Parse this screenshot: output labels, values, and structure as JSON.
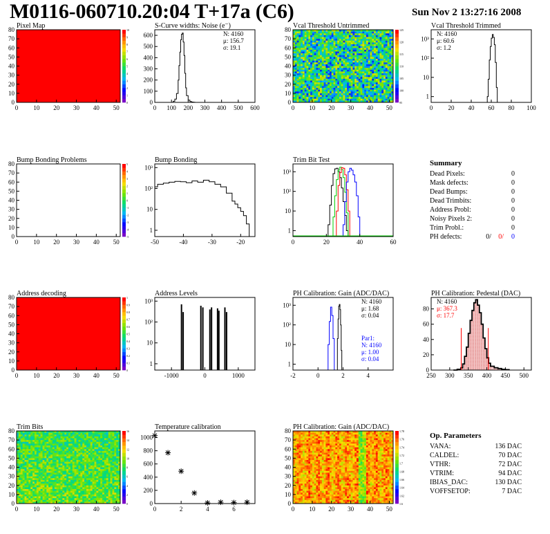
{
  "header": {
    "title": "M0116-060710.20:04 T+17a (C6)",
    "timestamp": "Sun Nov  2 13:27:16 2008"
  },
  "colors": {
    "frame": "#000000",
    "green_trace": "#00cc00",
    "red_trace": "#ff0000",
    "blue_trace": "#0000ff",
    "pedestal_fill": "#cc3333"
  },
  "chart_data": [
    {
      "id": "pixel-map",
      "type": "heatmap",
      "title": "Pixel Map",
      "xticks": [
        "0",
        "10",
        "20",
        "30",
        "40",
        "50"
      ],
      "yticks": [
        "0",
        "10",
        "20",
        "30",
        "40",
        "50",
        "60",
        "70",
        "80"
      ],
      "xlim": [
        0,
        52
      ],
      "ylim": [
        0,
        80
      ],
      "fill": "uniform",
      "uniform_value": 10,
      "zticks": [
        "0",
        "1",
        "2",
        "3",
        "4",
        "5",
        "6",
        "7",
        "8",
        "9",
        "10"
      ]
    },
    {
      "id": "scurve-noise",
      "type": "line",
      "title": "S-Curve widths: Noise (e⁻)",
      "xticks": [
        "0",
        "100",
        "200",
        "300",
        "400",
        "500",
        "600"
      ],
      "yticks": [
        "0",
        "100",
        "200",
        "300",
        "400",
        "500",
        "600"
      ],
      "xlim": [
        0,
        600
      ],
      "ylim": [
        0,
        650
      ],
      "log": false,
      "x": [
        100,
        110,
        120,
        130,
        140,
        145,
        150,
        155,
        160,
        165,
        170,
        175,
        180,
        185,
        190,
        200,
        210,
        220,
        230,
        240,
        250
      ],
      "y": [
        0,
        10,
        30,
        80,
        200,
        330,
        450,
        560,
        610,
        620,
        540,
        420,
        260,
        130,
        60,
        20,
        8,
        3,
        1,
        0,
        0
      ],
      "stats": [
        "N: 4160",
        "μ: 156.7",
        "σ: 19.1"
      ]
    },
    {
      "id": "vcal-untrimmed",
      "type": "heatmap",
      "title": "Vcal Threshold Untrimmed",
      "xticks": [
        "0",
        "10",
        "20",
        "30",
        "40",
        "50"
      ],
      "yticks": [
        "0",
        "10",
        "20",
        "30",
        "40",
        "50",
        "60",
        "70",
        "80"
      ],
      "xlim": [
        0,
        52
      ],
      "ylim": [
        0,
        80
      ],
      "fill": "noise",
      "zticks": [
        "95",
        "100",
        "105",
        "110",
        "115",
        "120",
        "125"
      ]
    },
    {
      "id": "vcal-trimmed",
      "type": "line",
      "title": "Vcal Threshold Trimmed",
      "xticks": [
        "0",
        "20",
        "40",
        "60",
        "80",
        "100"
      ],
      "yticks": [
        "1",
        "10",
        "10²",
        "10³"
      ],
      "xlim": [
        0,
        100
      ],
      "ylim": [
        0.5,
        3000
      ],
      "log": true,
      "x": [
        54,
        56,
        57,
        58,
        59,
        60,
        61,
        62,
        63,
        64,
        65,
        66
      ],
      "y": [
        0.5,
        1,
        8,
        80,
        400,
        1100,
        1700,
        1200,
        500,
        60,
        3,
        0.5
      ],
      "stats": [
        "N: 4160",
        "μ: 60.6",
        "σ:  1.2"
      ]
    },
    {
      "id": "bump-problems",
      "type": "heatmap",
      "title": "Bump Bonding Problems",
      "xticks": [
        "0",
        "10",
        "20",
        "30",
        "40",
        "50"
      ],
      "yticks": [
        "0",
        "10",
        "20",
        "30",
        "40",
        "50",
        "60",
        "70",
        "80"
      ],
      "xlim": [
        0,
        52
      ],
      "ylim": [
        0,
        80
      ],
      "fill": "empty",
      "zticks": [
        "-5",
        "-4",
        "-3",
        "-2",
        "-1",
        "0",
        "1",
        "2",
        "3",
        "4",
        "5"
      ]
    },
    {
      "id": "bump-bonding",
      "type": "line",
      "title": "Bump Bonding",
      "xticks": [
        "-50",
        "-40",
        "-30",
        "-20"
      ],
      "yticks": [
        "1",
        "10",
        "10²",
        "10³"
      ],
      "xlim": [
        -50,
        -15
      ],
      "ylim": [
        0.5,
        1500
      ],
      "log": true,
      "x": [
        -50,
        -49,
        -47,
        -45,
        -43,
        -41,
        -39,
        -37,
        -35,
        -33,
        -31,
        -29,
        -27,
        -25,
        -23,
        -22,
        -21,
        -20,
        -19,
        -18,
        -17
      ],
      "y": [
        120,
        160,
        180,
        200,
        220,
        210,
        190,
        230,
        200,
        250,
        210,
        160,
        120,
        60,
        25,
        18,
        12,
        8,
        5,
        2,
        0.5
      ]
    },
    {
      "id": "trim-bit-test",
      "type": "line",
      "title": "Trim Bit Test",
      "xticks": [
        "0",
        "20",
        "40",
        "60"
      ],
      "yticks": [
        "1",
        "10",
        "10²",
        "10³"
      ],
      "xlim": [
        0,
        60
      ],
      "ylim": [
        0.5,
        2500
      ],
      "log": true,
      "series": [
        {
          "color": "black",
          "x": [
            20,
            21,
            22,
            23,
            24,
            25,
            26,
            27,
            28,
            29,
            30,
            31,
            32,
            33
          ],
          "y": [
            0.5,
            2,
            20,
            200,
            800,
            1400,
            1500,
            1000,
            500,
            150,
            30,
            6,
            1,
            0.5
          ]
        },
        {
          "color": "green",
          "x": [
            23,
            24,
            25,
            26,
            27,
            28,
            29,
            30,
            31,
            32,
            33
          ],
          "y": [
            0.5,
            5,
            60,
            400,
            1200,
            1700,
            1300,
            500,
            90,
            8,
            0.5
          ]
        },
        {
          "color": "red",
          "x": [
            25,
            26,
            27,
            28,
            29,
            30,
            31,
            32,
            33,
            34
          ],
          "y": [
            0.5,
            10,
            200,
            900,
            1600,
            1500,
            700,
            120,
            10,
            0.5
          ]
        },
        {
          "color": "blue",
          "x": [
            29,
            30,
            31,
            32,
            33,
            34,
            35,
            36,
            37,
            38,
            39,
            40
          ],
          "y": [
            0.5,
            2,
            30,
            300,
            1000,
            1500,
            1200,
            700,
            300,
            60,
            5,
            0.5
          ]
        }
      ]
    },
    {
      "id": "address-decoding",
      "type": "heatmap",
      "title": "Address decoding",
      "xticks": [
        "0",
        "10",
        "20",
        "30",
        "40",
        "50"
      ],
      "yticks": [
        "0",
        "10",
        "20",
        "30",
        "40",
        "50",
        "60",
        "70",
        "80"
      ],
      "xlim": [
        0,
        52
      ],
      "ylim": [
        0,
        80
      ],
      "fill": "uniform",
      "uniform_value": 1,
      "zticks": [
        "0",
        "0.1",
        "0.2",
        "0.3",
        "0.4",
        "0.5",
        "0.6",
        "0.7",
        "0.8",
        "0.9",
        "1"
      ]
    },
    {
      "id": "address-levels",
      "type": "bar",
      "title": "Address Levels",
      "xticks": [
        "-1000",
        "0",
        "1000"
      ],
      "yticks": [
        "1",
        "10",
        "10²",
        "10³"
      ],
      "xlim": [
        -1500,
        1500
      ],
      "ylim": [
        0.5,
        1500
      ],
      "log": true,
      "x": [
        -700,
        -650,
        -120,
        -60,
        150,
        200,
        380,
        420,
        600,
        650
      ],
      "y": [
        700,
        300,
        600,
        500,
        400,
        500,
        450,
        350,
        500,
        300
      ]
    },
    {
      "id": "ph-gain",
      "type": "line",
      "title": "PH Calibration: Gain (ADC/DAC)",
      "xticks": [
        "-2",
        "0",
        "2",
        "4"
      ],
      "yticks": [
        "1",
        "10",
        "10²",
        "10³"
      ],
      "xlim": [
        -2,
        6
      ],
      "ylim": [
        0.5,
        2500
      ],
      "log": true,
      "series": [
        {
          "color": "black",
          "x": [
            1.5,
            1.55,
            1.6,
            1.65,
            1.7,
            1.75,
            1.8,
            1.85,
            1.9
          ],
          "y": [
            0.5,
            20,
            200,
            900,
            1100,
            600,
            100,
            5,
            0.5
          ]
        },
        {
          "color": "blue",
          "x": [
            0.7,
            0.8,
            0.9,
            1.0,
            1.1,
            1.2,
            1.3
          ],
          "y": [
            0.5,
            10,
            150,
            800,
            300,
            20,
            0.5
          ]
        }
      ],
      "stats": [
        "N: 4160",
        "μ: 1.68",
        "σ: 0.04"
      ],
      "stats2": [
        "Par1:",
        "N: 4160",
        "μ: 1.00",
        "σ: 0.04"
      ]
    },
    {
      "id": "ph-pedestal",
      "type": "line",
      "title": "PH Calibration: Pedestal (DAC)",
      "xticks": [
        "250",
        "300",
        "350",
        "400",
        "450",
        "500"
      ],
      "yticks": [
        "0",
        "20",
        "40",
        "60",
        "80"
      ],
      "xlim": [
        250,
        520
      ],
      "ylim": [
        0,
        95
      ],
      "log": false,
      "x": [
        310,
        320,
        330,
        335,
        340,
        345,
        350,
        355,
        360,
        365,
        370,
        375,
        380,
        385,
        390,
        395,
        400,
        405,
        410,
        420,
        430,
        440,
        450,
        460
      ],
      "y": [
        0,
        1,
        3,
        8,
        18,
        30,
        48,
        65,
        78,
        88,
        92,
        85,
        75,
        60,
        42,
        28,
        16,
        9,
        5,
        3,
        2,
        1,
        0.5,
        0
      ],
      "stats": [
        "N: 4160",
        "μ: 367.3",
        "σ: 17.7"
      ]
    },
    {
      "id": "trim-bits",
      "type": "heatmap",
      "title": "Trim Bits",
      "xticks": [
        "0",
        "10",
        "20",
        "30",
        "40",
        "50"
      ],
      "yticks": [
        "0",
        "10",
        "20",
        "30",
        "40",
        "50",
        "60",
        "70",
        "80"
      ],
      "xlim": [
        0,
        52
      ],
      "ylim": [
        0,
        80
      ],
      "fill": "noise-green",
      "zticks": [
        "0",
        "2",
        "4",
        "6",
        "8",
        "10",
        "12",
        "14",
        "16"
      ]
    },
    {
      "id": "temperature-calibration",
      "type": "scatter",
      "title": "Temperature calibration",
      "xticks": [
        "0",
        "2",
        "4",
        "6"
      ],
      "yticks": [
        "0",
        "200",
        "400",
        "600",
        "800",
        "1000"
      ],
      "xlim": [
        0,
        7.6
      ],
      "ylim": [
        0,
        1100
      ],
      "x": [
        0,
        1,
        2,
        3,
        4,
        5,
        6,
        7
      ],
      "y": [
        1030,
        770,
        490,
        160,
        10,
        20,
        15,
        20
      ]
    },
    {
      "id": "ph-gain-map",
      "type": "heatmap",
      "title": "PH Calibration: Gain (ADC/DAC)",
      "xticks": [
        "0",
        "10",
        "20",
        "30",
        "40",
        "50"
      ],
      "yticks": [
        "0",
        "10",
        "20",
        "30",
        "40",
        "50",
        "60",
        "70",
        "80"
      ],
      "xlim": [
        0,
        52
      ],
      "ylim": [
        0,
        80
      ],
      "fill": "noise-warm",
      "zticks": [
        "1.6",
        "1.62",
        "1.64",
        "1.66",
        "1.68",
        "1.7",
        "1.72",
        "1.74",
        "1.76",
        "1.78"
      ]
    }
  ],
  "summary": {
    "title": "Summary",
    "rows": [
      {
        "label": "Dead Pixels:",
        "value": "0"
      },
      {
        "label": "Mask defects:",
        "value": "0"
      },
      {
        "label": "Dead Bumps:",
        "value": "0"
      },
      {
        "label": "Dead Trimbits:",
        "value": "0"
      },
      {
        "label": "Address Probl:",
        "value": "0"
      },
      {
        "label": "Noisy Pixels 2:",
        "value": "0"
      },
      {
        "label": "Trim Probl.:",
        "value": "0"
      }
    ],
    "ph_defects": {
      "label": "PH defects:",
      "v1": "0/",
      "v2": "0/",
      "v3": "0"
    }
  },
  "parameters": {
    "title": "Op. Parameters",
    "rows": [
      {
        "label": "VANA:",
        "value": "136 DAC"
      },
      {
        "label": "CALDEL:",
        "value": "70 DAC"
      },
      {
        "label": "VTHR:",
        "value": "72 DAC"
      },
      {
        "label": "VTRIM:",
        "value": "94 DAC"
      },
      {
        "label": "IBIAS_DAC:",
        "value": "130 DAC"
      },
      {
        "label": "VOFFSETOP:",
        "value": "7 DAC"
      }
    ]
  }
}
